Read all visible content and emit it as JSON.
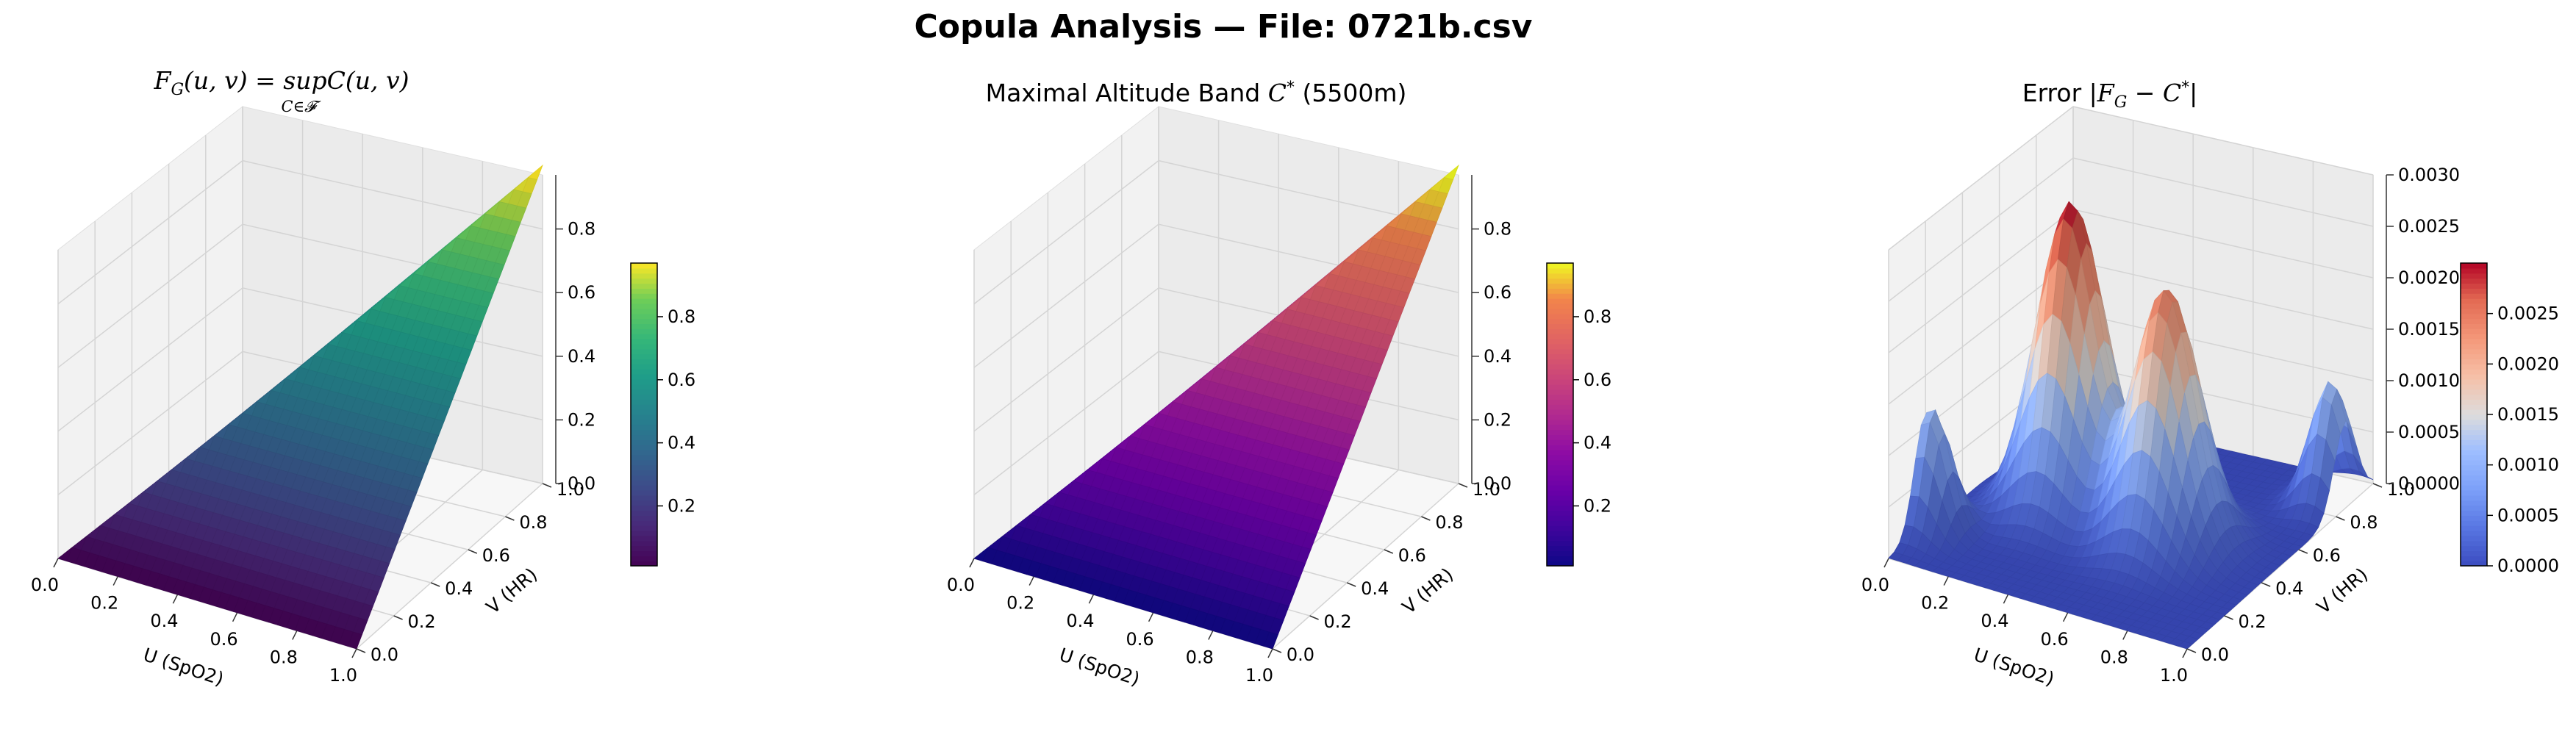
{
  "figure": {
    "title": "Copula Analysis — File: 0721b.csv"
  },
  "chart_data": [
    {
      "type": "surface3d",
      "title_parts": {
        "lhs": "F",
        "lhs_sub": "G",
        "args": "(u, v) = sup",
        "sup_sub": "C∈𝓕",
        "rhs": "C(u, v)"
      },
      "title": "F_G(u, v) = sup C(u, v)",
      "xlabel": "U (SpO2)",
      "ylabel": "V (HR)",
      "x_ticks": [
        "0.0",
        "0.2",
        "0.4",
        "0.6",
        "0.8",
        "1.0"
      ],
      "y_ticks": [
        "0.0",
        "0.2",
        "0.4",
        "0.6",
        "0.8",
        "1.0"
      ],
      "z_ticks": [
        "0.0",
        "0.2",
        "0.4",
        "0.6",
        "0.8"
      ],
      "zlim": [
        0,
        0.97
      ],
      "colormap": "viridis",
      "surface": "min(u, v)",
      "colorbar": {
        "ticks": [
          "0.2",
          "0.4",
          "0.6",
          "0.8"
        ],
        "range": [
          0.01,
          0.97
        ]
      }
    },
    {
      "type": "surface3d",
      "title_parts": {
        "text": "Maximal Altitude Band ",
        "sym": "C",
        "sup": "*",
        "after": " (5500m)"
      },
      "title": "Maximal Altitude Band C* (5500m)",
      "xlabel": "U (SpO2)",
      "ylabel": "V (HR)",
      "x_ticks": [
        "0.0",
        "0.2",
        "0.4",
        "0.6",
        "0.8",
        "1.0"
      ],
      "y_ticks": [
        "0.0",
        "0.2",
        "0.4",
        "0.6",
        "0.8",
        "1.0"
      ],
      "z_ticks": [
        "0.0",
        "0.2",
        "0.4",
        "0.6",
        "0.8"
      ],
      "zlim": [
        0,
        0.97
      ],
      "colormap": "plasma",
      "surface": "min(u, v)",
      "colorbar": {
        "ticks": [
          "0.2",
          "0.4",
          "0.6",
          "0.8"
        ],
        "range": [
          0.01,
          0.97
        ]
      }
    },
    {
      "type": "surface3d",
      "title_parts": {
        "text": "Error ",
        "bar": "|",
        "lhs": "F",
        "lhs_sub": "G",
        "minus": " − ",
        "sym": "C",
        "sup": "*"
      },
      "title": "Error |F_G − C*|",
      "xlabel": "U (SpO2)",
      "ylabel": "V (HR)",
      "x_ticks": [
        "0.0",
        "0.2",
        "0.4",
        "0.6",
        "0.8",
        "1.0"
      ],
      "y_ticks": [
        "0.0",
        "0.2",
        "0.4",
        "0.6",
        "0.8",
        "1.0"
      ],
      "z_ticks": [
        "0.0000",
        "0.0005",
        "0.0010",
        "0.0015",
        "0.0020",
        "0.0025",
        "0.0030"
      ],
      "zlim": [
        0,
        0.003
      ],
      "colormap": "coolwarm",
      "surface": "error peaks",
      "peaks": [
        {
          "u": 0.3,
          "v": 0.5,
          "height": 0.003,
          "spread": 0.1
        },
        {
          "u": 0.65,
          "v": 0.45,
          "height": 0.0025,
          "spread": 0.1
        },
        {
          "u": 0.02,
          "v": 0.2,
          "height": 0.0012,
          "spread": 0.06
        },
        {
          "u": 0.95,
          "v": 0.85,
          "height": 0.0012,
          "spread": 0.06
        }
      ],
      "colorbar": {
        "ticks": [
          "0.0000",
          "0.0005",
          "0.0010",
          "0.0015",
          "0.0020",
          "0.0025"
        ],
        "range": [
          0,
          0.003
        ]
      }
    }
  ]
}
